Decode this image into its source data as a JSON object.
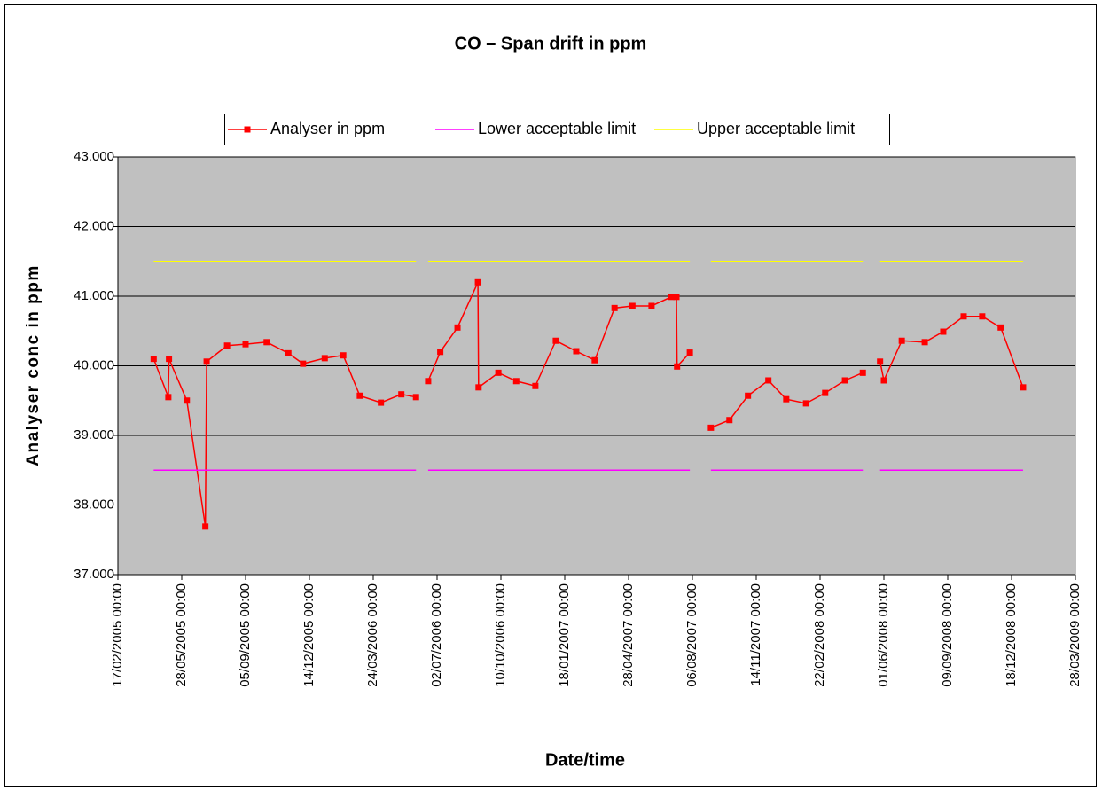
{
  "chart_data": {
    "type": "line",
    "title": "CO – Span drift in ppm",
    "x_label": "Date/time",
    "y_label": "Analyser conc in ppm",
    "x": [
      "2005-04-14",
      "2005-05-07",
      "2005-05-08",
      "2005-06-05",
      "2005-07-04",
      "2005-07-06",
      "2005-08-07",
      "2005-09-05",
      "2005-10-08",
      "2005-11-11",
      "2005-12-04",
      "2006-01-07",
      "2006-02-05",
      "2006-03-03",
      "2006-04-05",
      "2006-05-07",
      "2006-05-30",
      "2006-06-08",
      "2006-06-18",
      "2006-07-07",
      "2006-08-03",
      "2006-09-04",
      "2006-09-05",
      "2006-10-06",
      "2006-11-03",
      "2006-12-03",
      "2007-01-04",
      "2007-02-05",
      "2007-03-06",
      "2007-04-06",
      "2007-05-04",
      "2007-06-03",
      "2007-07-04",
      "2007-07-12",
      "2007-07-13",
      "2007-08-02",
      "2007-08-18",
      "2007-09-04",
      "2007-10-03",
      "2007-11-01",
      "2007-12-03",
      "2007-12-31",
      "2008-01-31",
      "2008-03-01",
      "2008-04-01",
      "2008-04-29",
      "2008-05-12",
      "2008-05-26",
      "2008-06-01",
      "2008-06-29",
      "2008-08-04",
      "2008-09-02",
      "2008-10-04",
      "2008-11-02",
      "2008-12-01",
      "2009-01-05"
    ],
    "series": [
      {
        "name": "Analyser in ppm",
        "color": "#ff0000",
        "marker": "square",
        "values": [
          40.1,
          39.55,
          40.1,
          39.5,
          37.69,
          40.06,
          40.29,
          40.31,
          40.34,
          40.18,
          40.03,
          40.11,
          40.15,
          39.57,
          39.47,
          39.59,
          39.55,
          null,
          39.78,
          40.2,
          40.55,
          41.2,
          39.69,
          39.9,
          39.78,
          39.71,
          40.36,
          40.21,
          40.08,
          40.83,
          40.86,
          40.86,
          40.99,
          40.99,
          39.99,
          40.19,
          null,
          39.11,
          39.22,
          39.57,
          39.79,
          39.52,
          39.46,
          39.61,
          39.79,
          39.9,
          null,
          40.06,
          39.79,
          40.36,
          40.34,
          40.49,
          40.71,
          40.71,
          40.55,
          39.69
        ]
      },
      {
        "name": "Lower acceptable limit",
        "color": "#ff00ff",
        "values": [
          38.5,
          38.5,
          38.5,
          38.5,
          38.5,
          38.5,
          38.5,
          38.5,
          38.5,
          38.5,
          38.5,
          38.5,
          38.5,
          38.5,
          38.5,
          38.5,
          38.5,
          null,
          38.5,
          38.5,
          38.5,
          38.5,
          38.5,
          38.5,
          38.5,
          38.5,
          38.5,
          38.5,
          38.5,
          38.5,
          38.5,
          38.5,
          38.5,
          38.5,
          38.5,
          38.5,
          null,
          38.5,
          38.5,
          38.5,
          38.5,
          38.5,
          38.5,
          38.5,
          38.5,
          38.5,
          null,
          38.5,
          38.5,
          38.5,
          38.5,
          38.5,
          38.5,
          38.5,
          38.5,
          38.5
        ]
      },
      {
        "name": "Upper acceptable limit",
        "color": "#ffff00",
        "values": [
          41.5,
          41.5,
          41.5,
          41.5,
          41.5,
          41.5,
          41.5,
          41.5,
          41.5,
          41.5,
          41.5,
          41.5,
          41.5,
          41.5,
          41.5,
          41.5,
          41.5,
          null,
          41.5,
          41.5,
          41.5,
          41.5,
          41.5,
          41.5,
          41.5,
          41.5,
          41.5,
          41.5,
          41.5,
          41.5,
          41.5,
          41.5,
          41.5,
          41.5,
          41.5,
          41.5,
          null,
          41.5,
          41.5,
          41.5,
          41.5,
          41.5,
          41.5,
          41.5,
          41.5,
          41.5,
          null,
          41.5,
          41.5,
          41.5,
          41.5,
          41.5,
          41.5,
          41.5,
          41.5,
          41.5
        ]
      }
    ],
    "xlim": [
      "2005-02-17",
      "2009-03-28"
    ],
    "xticks": [
      {
        "value": "2005-02-17",
        "label": "17/02/2005 00:00"
      },
      {
        "value": "2005-05-28",
        "label": "28/05/2005 00:00"
      },
      {
        "value": "2005-09-05",
        "label": "05/09/2005 00:00"
      },
      {
        "value": "2005-12-14",
        "label": "14/12/2005 00:00"
      },
      {
        "value": "2006-03-24",
        "label": "24/03/2006 00:00"
      },
      {
        "value": "2006-07-02",
        "label": "02/07/2006 00:00"
      },
      {
        "value": "2006-10-10",
        "label": "10/10/2006 00:00"
      },
      {
        "value": "2007-01-18",
        "label": "18/01/2007 00:00"
      },
      {
        "value": "2007-04-28",
        "label": "28/04/2007 00:00"
      },
      {
        "value": "2007-08-06",
        "label": "06/08/2007 00:00"
      },
      {
        "value": "2007-11-14",
        "label": "14/11/2007 00:00"
      },
      {
        "value": "2008-02-22",
        "label": "22/02/2008 00:00"
      },
      {
        "value": "2008-06-01",
        "label": "01/06/2008 00:00"
      },
      {
        "value": "2008-09-09",
        "label": "09/09/2008 00:00"
      },
      {
        "value": "2008-12-18",
        "label": "18/12/2008 00:00"
      },
      {
        "value": "2009-03-28",
        "label": "28/03/2009 00:00"
      }
    ],
    "ylim": [
      37,
      43
    ],
    "yticks": [
      {
        "value": 37,
        "label": "37.000"
      },
      {
        "value": 38,
        "label": "38.000"
      },
      {
        "value": 39,
        "label": "39.000"
      },
      {
        "value": 40,
        "label": "40.000"
      },
      {
        "value": 41,
        "label": "41.000"
      },
      {
        "value": 42,
        "label": "42.000"
      },
      {
        "value": 43,
        "label": "43.000"
      }
    ],
    "grid": true,
    "legend": "top",
    "plot_background": "#c0c0c0"
  }
}
